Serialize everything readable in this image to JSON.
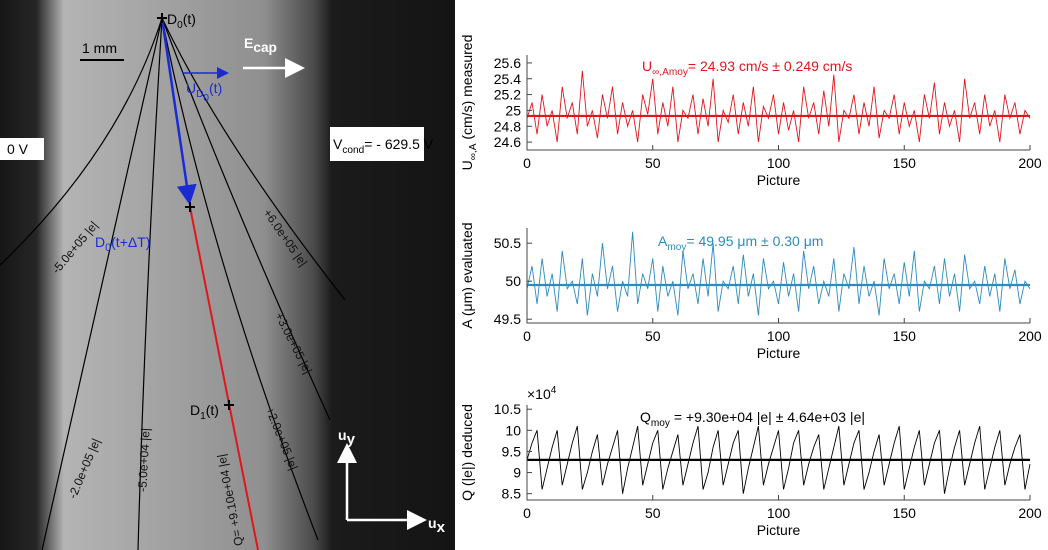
{
  "image_panel": {
    "d0t": [
      {
        "text": "D"
      },
      {
        "text": "0",
        "sub": 1
      },
      {
        "text": "(t)"
      }
    ],
    "scale": "1 mm",
    "ecap": [
      {
        "text": "E"
      },
      {
        "text": "cap",
        "sub": 1
      }
    ],
    "ud0": [
      {
        "text": "U"
      },
      {
        "text": "D",
        "sub": 1
      },
      {
        "text": "0",
        "sub": 2
      },
      {
        "text": "(t)"
      }
    ],
    "zero_v": "0 V",
    "vcond": [
      {
        "text": "V"
      },
      {
        "text": "cond",
        "sub": 1
      },
      {
        "text": "= - 629.5 V"
      }
    ],
    "d0dt": [
      {
        "text": "D"
      },
      {
        "text": "0",
        "sub": 1
      },
      {
        "text": "(t+ΔT)"
      }
    ],
    "d1t": [
      {
        "text": "D"
      },
      {
        "text": "1",
        "sub": 1
      },
      {
        "text": "(t)"
      }
    ],
    "uy": [
      {
        "text": "u"
      },
      {
        "text": "y",
        "sub": 1
      }
    ],
    "ux": [
      {
        "text": "u"
      },
      {
        "text": "x",
        "sub": 1
      }
    ],
    "curve_labels": [
      "-5.0e+05 |e|",
      "-2.0e+05 |e|",
      "-5.0e+04 |e|",
      "+6.0e+05 |e|",
      "+3.0e+05 |e|",
      "+2.0e+05 |e|",
      "Q= +9.10e+04 |e|"
    ]
  },
  "chart_data": [
    {
      "type": "line",
      "color": "#e0161b",
      "ylabel": [
        {
          "text": "U"
        },
        {
          "text": "∞,A",
          "sub": 1
        },
        {
          "text": " (cm/s) measured"
        }
      ],
      "xlabel": "Picture",
      "annotation": [
        {
          "text": "U"
        },
        {
          "text": "∞,Amoy",
          "sub": 1
        },
        {
          "text": "= 24.93 cm/s ± 0.249 cm/s"
        }
      ],
      "mean": 24.93,
      "xlim": [
        0,
        200
      ],
      "xticks": [
        0,
        50,
        100,
        150,
        200
      ],
      "ylim": [
        24.5,
        25.7
      ],
      "yticks": [
        24.6,
        24.8,
        25,
        25.2,
        25.4,
        25.6
      ],
      "x": [
        0,
        2,
        4,
        6,
        8,
        10,
        12,
        14,
        16,
        18,
        20,
        22,
        24,
        26,
        28,
        30,
        32,
        34,
        36,
        38,
        40,
        42,
        44,
        46,
        48,
        50,
        52,
        54,
        56,
        58,
        60,
        62,
        64,
        66,
        68,
        70,
        72,
        74,
        76,
        78,
        80,
        82,
        84,
        86,
        88,
        90,
        92,
        94,
        96,
        98,
        100,
        102,
        104,
        106,
        108,
        110,
        112,
        114,
        116,
        118,
        120,
        122,
        124,
        126,
        128,
        130,
        132,
        134,
        136,
        138,
        140,
        142,
        144,
        146,
        148,
        150,
        152,
        154,
        156,
        158,
        160,
        162,
        164,
        166,
        168,
        170,
        172,
        174,
        176,
        178,
        180,
        182,
        184,
        186,
        188,
        190,
        192,
        194,
        196,
        198,
        200
      ],
      "values": [
        24.9,
        25.1,
        24.7,
        25.2,
        24.8,
        25.0,
        24.6,
        25.3,
        24.9,
        25.1,
        24.7,
        25.5,
        24.8,
        25.0,
        24.65,
        25.2,
        24.9,
        25.3,
        24.7,
        25.1,
        24.8,
        25.0,
        24.6,
        25.2,
        24.95,
        25.4,
        24.7,
        25.1,
        24.8,
        25.3,
        24.6,
        25.0,
        24.9,
        25.2,
        24.7,
        25.15,
        24.8,
        25.4,
        24.6,
        25.0,
        24.85,
        25.2,
        24.7,
        25.1,
        24.8,
        25.3,
        24.6,
        25.05,
        24.9,
        25.2,
        24.7,
        25.1,
        24.75,
        25.0,
        24.6,
        25.3,
        24.9,
        25.1,
        24.7,
        25.25,
        24.8,
        25.45,
        24.6,
        25.0,
        24.9,
        25.2,
        24.7,
        25.1,
        24.8,
        25.3,
        24.65,
        25.0,
        24.9,
        25.2,
        24.7,
        25.1,
        24.8,
        25.0,
        24.6,
        25.2,
        24.9,
        25.35,
        24.7,
        25.1,
        24.8,
        25.0,
        24.6,
        25.4,
        24.9,
        25.1,
        24.7,
        25.2,
        24.8,
        25.0,
        24.6,
        25.2,
        24.9,
        25.1,
        24.7,
        25.0,
        24.9
      ]
    },
    {
      "type": "line",
      "color": "#2b8cbe",
      "ylabel": [
        {
          "text": "A ("
        },
        {
          "text": "μ"
        },
        {
          "text": "m) evaluated"
        }
      ],
      "xlabel": "Picture",
      "annotation": [
        {
          "text": "A"
        },
        {
          "text": "moy",
          "sub": 1
        },
        {
          "text": "= 49.95 μm ± 0.30 μm"
        }
      ],
      "mean": 49.95,
      "xlim": [
        0,
        200
      ],
      "xticks": [
        0,
        50,
        100,
        150,
        200
      ],
      "ylim": [
        49.45,
        50.7
      ],
      "yticks": [
        49.5,
        50,
        50.5
      ],
      "x": [
        0,
        2,
        4,
        6,
        8,
        10,
        12,
        14,
        16,
        18,
        20,
        22,
        24,
        26,
        28,
        30,
        32,
        34,
        36,
        38,
        40,
        42,
        44,
        46,
        48,
        50,
        52,
        54,
        56,
        58,
        60,
        62,
        64,
        66,
        68,
        70,
        72,
        74,
        76,
        78,
        80,
        82,
        84,
        86,
        88,
        90,
        92,
        94,
        96,
        98,
        100,
        102,
        104,
        106,
        108,
        110,
        112,
        114,
        116,
        118,
        120,
        122,
        124,
        126,
        128,
        130,
        132,
        134,
        136,
        138,
        140,
        142,
        144,
        146,
        148,
        150,
        152,
        154,
        156,
        158,
        160,
        162,
        164,
        166,
        168,
        170,
        172,
        174,
        176,
        178,
        180,
        182,
        184,
        186,
        188,
        190,
        192,
        194,
        196,
        198,
        200
      ],
      "values": [
        49.9,
        50.2,
        49.7,
        50.3,
        49.8,
        50.1,
        49.6,
        50.4,
        49.9,
        50.0,
        49.7,
        50.3,
        49.55,
        50.1,
        49.8,
        50.5,
        49.9,
        50.2,
        49.6,
        50.0,
        49.8,
        50.65,
        49.7,
        50.1,
        49.9,
        50.3,
        49.6,
        50.2,
        49.8,
        50.0,
        49.55,
        50.4,
        49.9,
        50.1,
        49.7,
        50.3,
        49.8,
        50.5,
        49.6,
        50.0,
        49.9,
        50.2,
        49.7,
        50.35,
        49.8,
        50.1,
        49.55,
        50.3,
        49.9,
        50.0,
        49.7,
        50.25,
        49.8,
        50.1,
        49.6,
        50.4,
        49.9,
        50.2,
        49.7,
        50.0,
        49.8,
        50.3,
        49.6,
        50.1,
        49.9,
        50.45,
        49.7,
        50.2,
        49.8,
        50.0,
        49.55,
        50.3,
        49.9,
        50.1,
        49.7,
        50.25,
        49.8,
        50.4,
        49.6,
        50.0,
        49.9,
        50.2,
        49.7,
        50.3,
        49.8,
        50.1,
        49.6,
        50.35,
        49.9,
        50.0,
        49.7,
        50.2,
        49.8,
        50.1,
        49.6,
        50.3,
        49.9,
        50.15,
        49.7,
        50.0,
        49.9
      ]
    },
    {
      "type": "line",
      "color": "#000000",
      "ylabel": [
        {
          "text": "Q (|e|) deduced"
        }
      ],
      "xlabel": "Picture",
      "multiplier": [
        {
          "text": "×10"
        },
        {
          "text": "4",
          "sup": 1
        }
      ],
      "annotation": [
        {
          "text": "Q"
        },
        {
          "text": "moy",
          "sub": 1
        },
        {
          "text": " = +9.30e+04 |e| ± 4.64e+03 |e|"
        }
      ],
      "mean": 9.3,
      "xlim": [
        0,
        200
      ],
      "xticks": [
        0,
        50,
        100,
        150,
        200
      ],
      "ylim": [
        8.35,
        10.6
      ],
      "yticks": [
        8.5,
        9,
        9.5,
        10,
        10.5
      ],
      "x": [
        0,
        2,
        4,
        6,
        8,
        10,
        12,
        14,
        16,
        18,
        20,
        22,
        24,
        26,
        28,
        30,
        32,
        34,
        36,
        38,
        40,
        42,
        44,
        46,
        48,
        50,
        52,
        54,
        56,
        58,
        60,
        62,
        64,
        66,
        68,
        70,
        72,
        74,
        76,
        78,
        80,
        82,
        84,
        86,
        88,
        90,
        92,
        94,
        96,
        98,
        100,
        102,
        104,
        106,
        108,
        110,
        112,
        114,
        116,
        118,
        120,
        122,
        124,
        126,
        128,
        130,
        132,
        134,
        136,
        138,
        140,
        142,
        144,
        146,
        148,
        150,
        152,
        154,
        156,
        158,
        160,
        162,
        164,
        166,
        168,
        170,
        172,
        174,
        176,
        178,
        180,
        182,
        184,
        186,
        188,
        190,
        192,
        194,
        196,
        198,
        200
      ],
      "values": [
        9.3,
        9.7,
        10.0,
        8.6,
        9.1,
        9.6,
        10.0,
        8.7,
        9.2,
        9.7,
        10.1,
        8.6,
        9.0,
        9.5,
        9.9,
        8.7,
        9.2,
        9.6,
        10.0,
        8.5,
        9.1,
        9.6,
        10.1,
        8.7,
        9.2,
        9.7,
        10.0,
        8.6,
        9.1,
        9.5,
        9.9,
        8.7,
        9.2,
        9.7,
        10.1,
        8.6,
        9.0,
        9.6,
        10.0,
        8.7,
        9.2,
        9.7,
        10.0,
        8.5,
        9.1,
        9.6,
        10.1,
        8.7,
        9.2,
        9.6,
        10.0,
        8.6,
        9.1,
        9.7,
        10.0,
        8.7,
        9.2,
        9.6,
        9.9,
        8.6,
        9.1,
        9.6,
        10.1,
        8.7,
        9.2,
        9.7,
        10.0,
        8.6,
        9.0,
        9.5,
        9.9,
        8.7,
        9.2,
        9.7,
        10.1,
        8.6,
        9.1,
        9.6,
        10.0,
        8.7,
        9.2,
        9.7,
        10.0,
        8.5,
        9.1,
        9.6,
        10.0,
        8.7,
        9.2,
        9.7,
        10.1,
        8.6,
        9.1,
        9.6,
        10.0,
        8.7,
        9.2,
        9.6,
        9.9,
        8.6,
        9.2
      ]
    }
  ]
}
